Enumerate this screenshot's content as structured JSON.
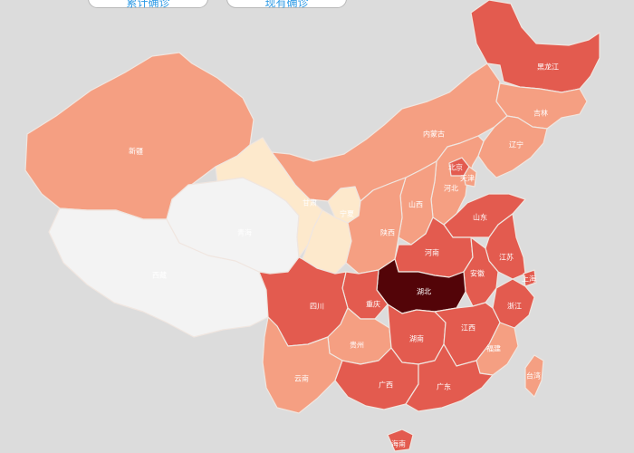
{
  "toggles": {
    "cumulative": "累计确诊",
    "current": "现有确诊"
  },
  "legend_colors": {
    "none": "#f3f3f3",
    "level1": "#fde9cc",
    "level2": "#f59f82",
    "level3": "#e35b4f",
    "level4": "#530408"
  },
  "provinces": [
    {
      "key": "heilongjiang",
      "label": "黑龙江",
      "level": "level3"
    },
    {
      "key": "jilin",
      "label": "吉林",
      "level": "level2"
    },
    {
      "key": "liaoning",
      "label": "辽宁",
      "level": "level2"
    },
    {
      "key": "neimenggu",
      "label": "内蒙古",
      "level": "level2"
    },
    {
      "key": "xinjiang",
      "label": "新疆",
      "level": "level2"
    },
    {
      "key": "xizang",
      "label": "西藏",
      "level": "none"
    },
    {
      "key": "qinghai",
      "label": "青海",
      "level": "none"
    },
    {
      "key": "gansu",
      "label": "甘肃",
      "level": "level1"
    },
    {
      "key": "ningxia",
      "label": "宁夏",
      "level": "level1"
    },
    {
      "key": "shaanxi",
      "label": "陕西",
      "level": "level2"
    },
    {
      "key": "shanxi",
      "label": "山西",
      "level": "level2"
    },
    {
      "key": "hebei",
      "label": "河北",
      "level": "level2"
    },
    {
      "key": "beijing",
      "label": "北京",
      "level": "level3"
    },
    {
      "key": "tianjin",
      "label": "天津",
      "level": "level2"
    },
    {
      "key": "shandong",
      "label": "山东",
      "level": "level3"
    },
    {
      "key": "henan",
      "label": "河南",
      "level": "level3"
    },
    {
      "key": "jiangsu",
      "label": "江苏",
      "level": "level3"
    },
    {
      "key": "shanghai",
      "label": "上海",
      "level": "level3"
    },
    {
      "key": "anhui",
      "label": "安徽",
      "level": "level3"
    },
    {
      "key": "hubei",
      "label": "湖北",
      "level": "level4"
    },
    {
      "key": "zhejiang",
      "label": "浙江",
      "level": "level3"
    },
    {
      "key": "chongqing",
      "label": "重庆",
      "level": "level3"
    },
    {
      "key": "sichuan",
      "label": "四川",
      "level": "level3"
    },
    {
      "key": "guizhou",
      "label": "贵州",
      "level": "level2"
    },
    {
      "key": "hunan",
      "label": "湖南",
      "level": "level3"
    },
    {
      "key": "jiangxi",
      "label": "江西",
      "level": "level3"
    },
    {
      "key": "fujian",
      "label": "福建",
      "level": "level2"
    },
    {
      "key": "taiwan",
      "label": "台湾",
      "level": "level2"
    },
    {
      "key": "yunnan",
      "label": "云南",
      "level": "level2"
    },
    {
      "key": "guangxi",
      "label": "广西",
      "level": "level3"
    },
    {
      "key": "guangdong",
      "label": "广东",
      "level": "level3"
    },
    {
      "key": "hainan",
      "label": "海南",
      "level": "level3"
    }
  ]
}
